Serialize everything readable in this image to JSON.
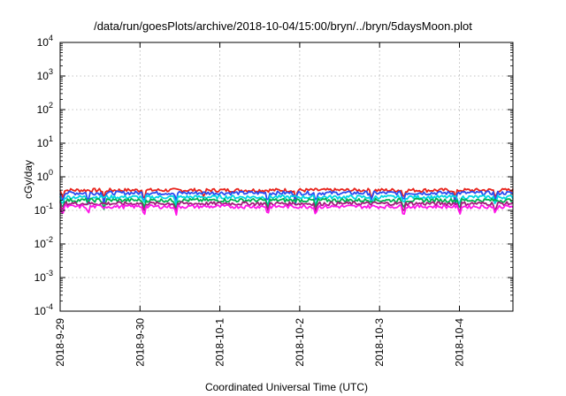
{
  "chart_data": {
    "type": "line",
    "title": "/data/run/goesPlots/archive/2018-10-04/15:00/bryn/../bryn/5daysMoon.plot",
    "xlabel": "Coordinated Universal Time (UTC)",
    "ylabel": "cGy/day",
    "yscale": "log",
    "ylim": [
      0.0001,
      10000
    ],
    "xlim": [
      0,
      5.67
    ],
    "yticks": [
      {
        "base": "10",
        "exp": "-4",
        "value": 0.0001
      },
      {
        "base": "10",
        "exp": "-3",
        "value": 0.001
      },
      {
        "base": "10",
        "exp": "-2",
        "value": 0.01
      },
      {
        "base": "10",
        "exp": "-1",
        "value": 0.1
      },
      {
        "base": "10",
        "exp": "0",
        "value": 1
      },
      {
        "base": "10",
        "exp": "1",
        "value": 10
      },
      {
        "base": "10",
        "exp": "2",
        "value": 100
      },
      {
        "base": "10",
        "exp": "3",
        "value": 1000
      },
      {
        "base": "10",
        "exp": "4",
        "value": 10000
      }
    ],
    "xticks": [
      {
        "label": "2018-9-29",
        "value": 0
      },
      {
        "label": "2018-9-30",
        "value": 1
      },
      {
        "label": "2018-10-1",
        "value": 2
      },
      {
        "label": "2018-10-2",
        "value": 3
      },
      {
        "label": "2018-10-3",
        "value": 4
      },
      {
        "label": "2018-10-4",
        "value": 5
      }
    ],
    "grid": true,
    "series": [
      {
        "color": "#e8231b",
        "level": 0.4,
        "dips": [
          0.03,
          0.55,
          1.05,
          1.8,
          2.95,
          3.9,
          4.3,
          4.95,
          5.45
        ]
      },
      {
        "color": "#2a4cf0",
        "level": 0.33,
        "dips": [
          0.03,
          0.35,
          0.55,
          1.05,
          1.45,
          2.6,
          2.95,
          3.2,
          3.9,
          4.3,
          4.95,
          5.45
        ]
      },
      {
        "color": "#00d5e3",
        "level": 0.25,
        "dips": [
          0.03,
          0.35,
          1.05,
          1.45,
          2.6,
          3.2,
          3.9,
          4.3,
          5.0,
          5.45
        ]
      },
      {
        "color": "#00b050",
        "level": 0.2,
        "dips": [
          0.03,
          0.55,
          1.05,
          1.45,
          2.6,
          3.2,
          4.3,
          5.0
        ]
      },
      {
        "color": "#a01e7a",
        "level": 0.16,
        "dips": [
          0.03,
          1.05,
          1.45,
          2.6,
          3.2,
          4.3,
          5.0,
          5.45
        ]
      },
      {
        "color": "#ff14e8",
        "level": 0.13,
        "dips": [
          0.03,
          0.35,
          1.05,
          1.45,
          2.6,
          3.2,
          4.3,
          5.0,
          5.45
        ]
      }
    ]
  }
}
